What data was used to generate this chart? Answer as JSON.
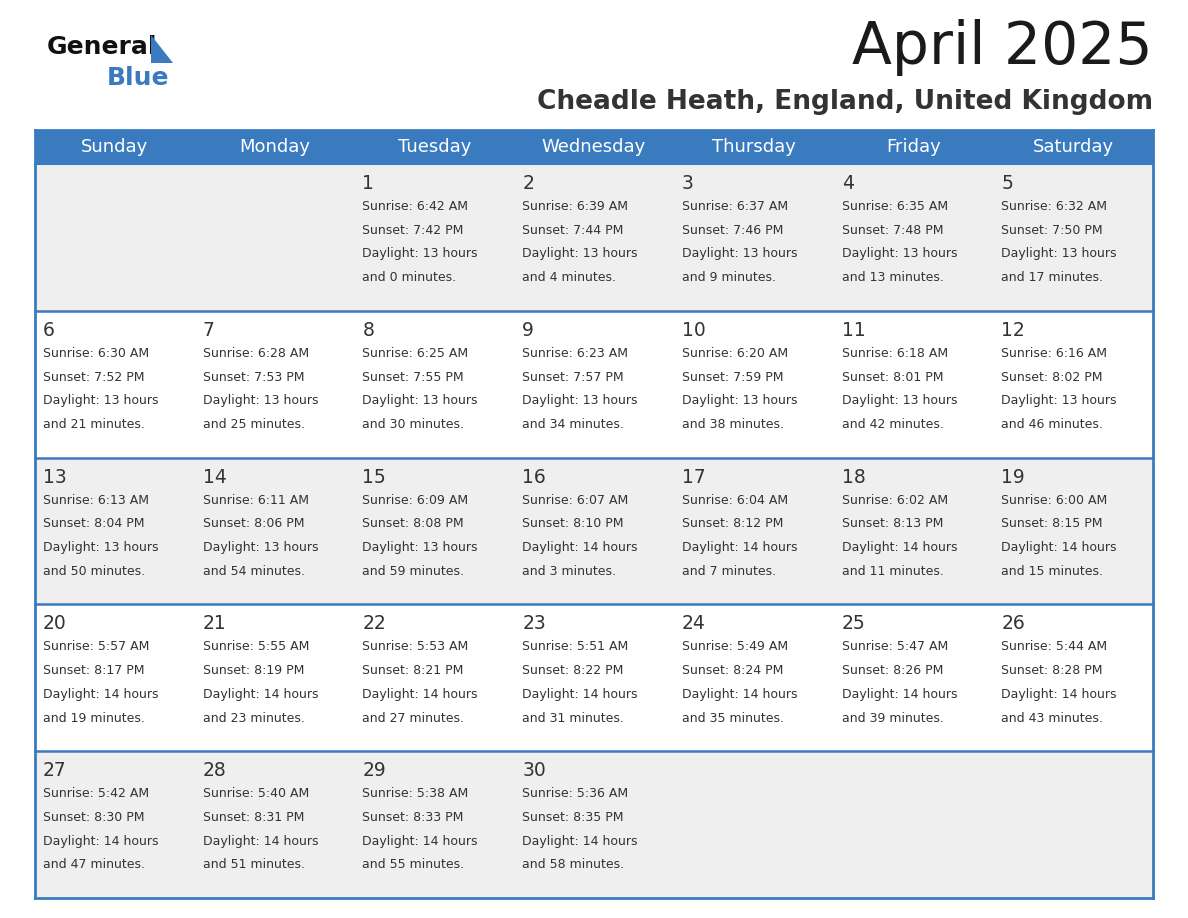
{
  "title": "April 2025",
  "subtitle": "Cheadle Heath, England, United Kingdom",
  "days_of_week": [
    "Sunday",
    "Monday",
    "Tuesday",
    "Wednesday",
    "Thursday",
    "Friday",
    "Saturday"
  ],
  "header_bg": "#3a7bbf",
  "header_text": "#ffffff",
  "row_colors": [
    "#efefef",
    "#ffffff",
    "#efefef",
    "#ffffff",
    "#efefef"
  ],
  "border_color": "#3a7bbf",
  "title_color": "#1a1a1a",
  "subtitle_color": "#333333",
  "text_color": "#333333",
  "calendar": [
    [
      null,
      null,
      {
        "day": 1,
        "sunrise": "6:42 AM",
        "sunset": "7:42 PM",
        "daylight": "13 hours and 0 minutes."
      },
      {
        "day": 2,
        "sunrise": "6:39 AM",
        "sunset": "7:44 PM",
        "daylight": "13 hours and 4 minutes."
      },
      {
        "day": 3,
        "sunrise": "6:37 AM",
        "sunset": "7:46 PM",
        "daylight": "13 hours and 9 minutes."
      },
      {
        "day": 4,
        "sunrise": "6:35 AM",
        "sunset": "7:48 PM",
        "daylight": "13 hours and 13 minutes."
      },
      {
        "day": 5,
        "sunrise": "6:32 AM",
        "sunset": "7:50 PM",
        "daylight": "13 hours and 17 minutes."
      }
    ],
    [
      {
        "day": 6,
        "sunrise": "6:30 AM",
        "sunset": "7:52 PM",
        "daylight": "13 hours and 21 minutes."
      },
      {
        "day": 7,
        "sunrise": "6:28 AM",
        "sunset": "7:53 PM",
        "daylight": "13 hours and 25 minutes."
      },
      {
        "day": 8,
        "sunrise": "6:25 AM",
        "sunset": "7:55 PM",
        "daylight": "13 hours and 30 minutes."
      },
      {
        "day": 9,
        "sunrise": "6:23 AM",
        "sunset": "7:57 PM",
        "daylight": "13 hours and 34 minutes."
      },
      {
        "day": 10,
        "sunrise": "6:20 AM",
        "sunset": "7:59 PM",
        "daylight": "13 hours and 38 minutes."
      },
      {
        "day": 11,
        "sunrise": "6:18 AM",
        "sunset": "8:01 PM",
        "daylight": "13 hours and 42 minutes."
      },
      {
        "day": 12,
        "sunrise": "6:16 AM",
        "sunset": "8:02 PM",
        "daylight": "13 hours and 46 minutes."
      }
    ],
    [
      {
        "day": 13,
        "sunrise": "6:13 AM",
        "sunset": "8:04 PM",
        "daylight": "13 hours and 50 minutes."
      },
      {
        "day": 14,
        "sunrise": "6:11 AM",
        "sunset": "8:06 PM",
        "daylight": "13 hours and 54 minutes."
      },
      {
        "day": 15,
        "sunrise": "6:09 AM",
        "sunset": "8:08 PM",
        "daylight": "13 hours and 59 minutes."
      },
      {
        "day": 16,
        "sunrise": "6:07 AM",
        "sunset": "8:10 PM",
        "daylight": "14 hours and 3 minutes."
      },
      {
        "day": 17,
        "sunrise": "6:04 AM",
        "sunset": "8:12 PM",
        "daylight": "14 hours and 7 minutes."
      },
      {
        "day": 18,
        "sunrise": "6:02 AM",
        "sunset": "8:13 PM",
        "daylight": "14 hours and 11 minutes."
      },
      {
        "day": 19,
        "sunrise": "6:00 AM",
        "sunset": "8:15 PM",
        "daylight": "14 hours and 15 minutes."
      }
    ],
    [
      {
        "day": 20,
        "sunrise": "5:57 AM",
        "sunset": "8:17 PM",
        "daylight": "14 hours and 19 minutes."
      },
      {
        "day": 21,
        "sunrise": "5:55 AM",
        "sunset": "8:19 PM",
        "daylight": "14 hours and 23 minutes."
      },
      {
        "day": 22,
        "sunrise": "5:53 AM",
        "sunset": "8:21 PM",
        "daylight": "14 hours and 27 minutes."
      },
      {
        "day": 23,
        "sunrise": "5:51 AM",
        "sunset": "8:22 PM",
        "daylight": "14 hours and 31 minutes."
      },
      {
        "day": 24,
        "sunrise": "5:49 AM",
        "sunset": "8:24 PM",
        "daylight": "14 hours and 35 minutes."
      },
      {
        "day": 25,
        "sunrise": "5:47 AM",
        "sunset": "8:26 PM",
        "daylight": "14 hours and 39 minutes."
      },
      {
        "day": 26,
        "sunrise": "5:44 AM",
        "sunset": "8:28 PM",
        "daylight": "14 hours and 43 minutes."
      }
    ],
    [
      {
        "day": 27,
        "sunrise": "5:42 AM",
        "sunset": "8:30 PM",
        "daylight": "14 hours and 47 minutes."
      },
      {
        "day": 28,
        "sunrise": "5:40 AM",
        "sunset": "8:31 PM",
        "daylight": "14 hours and 51 minutes."
      },
      {
        "day": 29,
        "sunrise": "5:38 AM",
        "sunset": "8:33 PM",
        "daylight": "14 hours and 55 minutes."
      },
      {
        "day": 30,
        "sunrise": "5:36 AM",
        "sunset": "8:35 PM",
        "daylight": "14 hours and 58 minutes."
      },
      null,
      null,
      null
    ]
  ]
}
